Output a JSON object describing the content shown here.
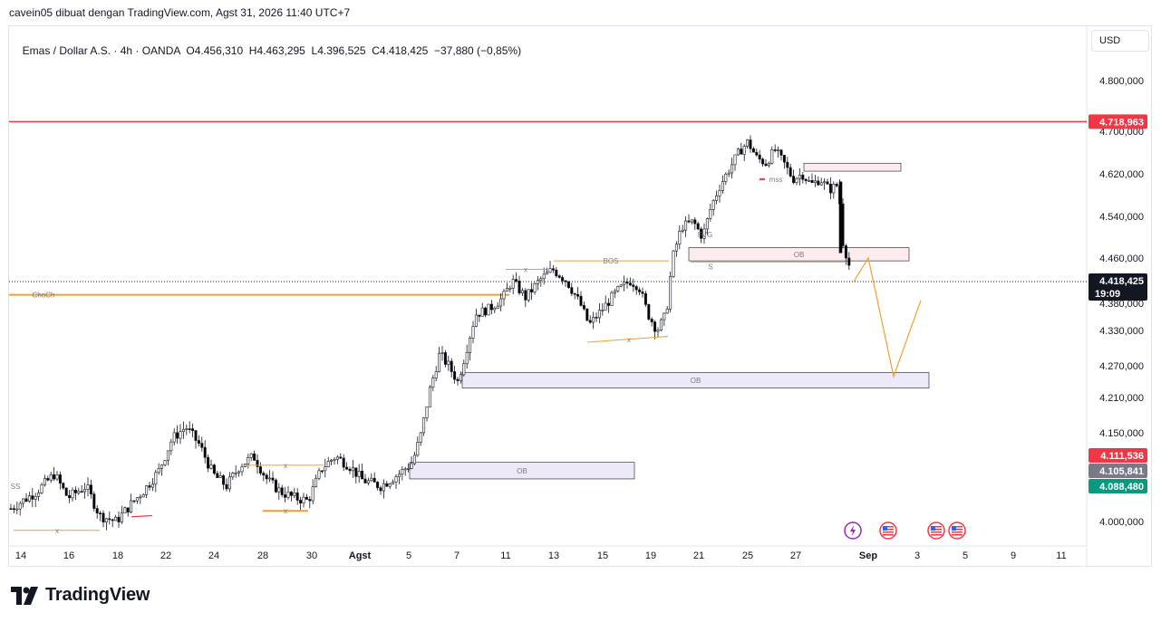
{
  "header": {
    "attribution": "cavein05 dibuat dengan TradingView.com, Agst 31, 2026 11:40 UTC+7"
  },
  "symbol": {
    "name": "Emas / Dollar A.S. · 4h · OANDA",
    "open": "O4.456,310",
    "high": "H4.463,295",
    "low": "L4.396,525",
    "close": "C4.418,425",
    "change": "−37,880 (−0,85%)"
  },
  "currency_button": "USD",
  "brand": {
    "name": "TradingView",
    "icon": "tradingview-logo-icon"
  },
  "colors": {
    "up": "#ffffff",
    "down": "#000000",
    "resistance": "#f23645",
    "choch": "#f0a030",
    "ob_fill": "#ede9f8",
    "ob_red_fill": "#fdecee",
    "last_price": "#131722",
    "green_tag": "#089981",
    "grey_tag": "#787b86"
  },
  "chart_data": {
    "type": "candlestick",
    "price_axis": {
      "ticks": [
        "4.800,000",
        "4.700,000",
        "4.620,000",
        "4.540,000",
        "4.460,000",
        "4.380,000",
        "4.330,000",
        "4.270,000",
        "4.210,000",
        "4.150,000",
        "4.000,000"
      ],
      "tick_values": [
        4800,
        4700,
        4620,
        4540,
        4460,
        4380,
        4330,
        4270,
        4210,
        4150,
        4000
      ]
    },
    "time_axis": {
      "ticks": [
        "14",
        "16",
        "18",
        "22",
        "24",
        "28",
        "30",
        "Agst",
        "5",
        "7",
        "11",
        "13",
        "15",
        "19",
        "21",
        "25",
        "27",
        "Sep",
        "3",
        "5",
        "9",
        "11"
      ]
    },
    "price_tags": [
      {
        "label": "4.718,963",
        "value": 4718.963,
        "color": "#f23645"
      },
      {
        "label": "4.418,425",
        "value": 4418.425,
        "color": "#131722",
        "sub": "19:09"
      },
      {
        "label": "4.111,536",
        "value": 4111.536,
        "color": "#f23645"
      },
      {
        "label": "4.105,841",
        "value": 4105.841,
        "color": "#787b86"
      },
      {
        "label": "4.088,480",
        "value": 4088.48,
        "color": "#089981"
      }
    ],
    "annotations": {
      "choch": "ChoCh",
      "bos": "BOS",
      "fvg": "FVG",
      "mss": "mss",
      "s": "S",
      "x": "x",
      "ob": "OB",
      "partial_left": "SS"
    },
    "lines": {
      "resistance": 4718.963,
      "choch_level": 4395,
      "last_price": 4418.425
    },
    "order_blocks": [
      {
        "label": "OB",
        "top": 4257,
        "bottom": 4228
      },
      {
        "label": "OB",
        "top": 4480,
        "bottom": 4455
      },
      {
        "label": "OB",
        "top": 4100,
        "bottom": 4072
      },
      {
        "label": "",
        "top": 4640,
        "bottom": 4625
      }
    ],
    "projection": [
      4418,
      4460,
      4250,
      4385
    ],
    "event_icons": [
      "lightning-icon",
      "us-flag-icon",
      "us-flag-icon",
      "us-flag-icon"
    ]
  }
}
